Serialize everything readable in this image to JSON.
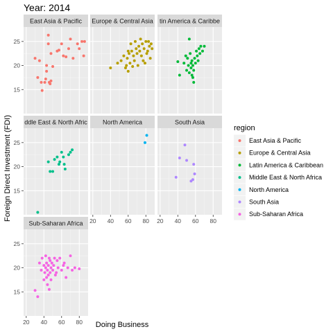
{
  "chart_data": {
    "type": "scatter",
    "title": "Year: 2014",
    "xlabel": "Doing Business",
    "ylabel": "Foreign Direct Investment (FDI)",
    "xlim": [
      17,
      90
    ],
    "ylim": [
      10,
      28
    ],
    "x_ticks": [
      20,
      40,
      60,
      80
    ],
    "y_ticks": [
      15,
      20,
      25
    ],
    "grid": true,
    "legend_title": "region",
    "legend_position": "right",
    "panels": [
      {
        "name": "East Asia & Pacific",
        "strip_label": "East Asia & Pacific",
        "color": "#F8766D",
        "points": [
          {
            "x": 30,
            "y": 21.5
          },
          {
            "x": 33,
            "y": 17.5
          },
          {
            "x": 35,
            "y": 21.0
          },
          {
            "x": 37,
            "y": 16.5
          },
          {
            "x": 38,
            "y": 14.8
          },
          {
            "x": 41,
            "y": 16.5
          },
          {
            "x": 42,
            "y": 17.2
          },
          {
            "x": 43,
            "y": 20.0
          },
          {
            "x": 43,
            "y": 18.8
          },
          {
            "x": 45,
            "y": 24.5
          },
          {
            "x": 45,
            "y": 26.3
          },
          {
            "x": 46,
            "y": 16.5
          },
          {
            "x": 47,
            "y": 16.2
          },
          {
            "x": 48,
            "y": 16.8
          },
          {
            "x": 48,
            "y": 22.5
          },
          {
            "x": 50,
            "y": 19.8
          },
          {
            "x": 55,
            "y": 23.0
          },
          {
            "x": 57,
            "y": 23.2
          },
          {
            "x": 60,
            "y": 24.5
          },
          {
            "x": 62,
            "y": 22.0
          },
          {
            "x": 65,
            "y": 21.8
          },
          {
            "x": 68,
            "y": 23.5
          },
          {
            "x": 70,
            "y": 25.5
          },
          {
            "x": 73,
            "y": 21.5
          },
          {
            "x": 78,
            "y": 24.5
          },
          {
            "x": 80,
            "y": 23.5
          },
          {
            "x": 83,
            "y": 25.0
          },
          {
            "x": 85,
            "y": 22.0
          },
          {
            "x": 86,
            "y": 25.0
          }
        ]
      },
      {
        "name": "Europe & Central Asia",
        "strip_label": "Europe & Central Asia",
        "color": "#B79F00",
        "points": [
          {
            "x": 40,
            "y": 19.5
          },
          {
            "x": 48,
            "y": 20.5
          },
          {
            "x": 52,
            "y": 21.0
          },
          {
            "x": 55,
            "y": 22.0
          },
          {
            "x": 57,
            "y": 19.5
          },
          {
            "x": 58,
            "y": 20.0
          },
          {
            "x": 59,
            "y": 21.5
          },
          {
            "x": 60,
            "y": 23.0
          },
          {
            "x": 60,
            "y": 18.8
          },
          {
            "x": 61,
            "y": 22.5
          },
          {
            "x": 62,
            "y": 20.5
          },
          {
            "x": 63,
            "y": 24.5
          },
          {
            "x": 64,
            "y": 23.0
          },
          {
            "x": 65,
            "y": 19.8
          },
          {
            "x": 66,
            "y": 22.0
          },
          {
            "x": 67,
            "y": 21.0
          },
          {
            "x": 68,
            "y": 25.0
          },
          {
            "x": 69,
            "y": 23.5
          },
          {
            "x": 70,
            "y": 22.5
          },
          {
            "x": 71,
            "y": 20.0
          },
          {
            "x": 72,
            "y": 24.0
          },
          {
            "x": 73,
            "y": 23.0
          },
          {
            "x": 74,
            "y": 25.5
          },
          {
            "x": 75,
            "y": 22.0
          },
          {
            "x": 76,
            "y": 24.5
          },
          {
            "x": 77,
            "y": 21.0
          },
          {
            "x": 78,
            "y": 23.5
          },
          {
            "x": 79,
            "y": 20.5
          },
          {
            "x": 80,
            "y": 25.0
          },
          {
            "x": 81,
            "y": 22.5
          },
          {
            "x": 82,
            "y": 23.0
          },
          {
            "x": 83,
            "y": 25.0
          },
          {
            "x": 84,
            "y": 24.0
          },
          {
            "x": 85,
            "y": 21.5
          },
          {
            "x": 86,
            "y": 24.5
          },
          {
            "x": 87,
            "y": 23.5
          }
        ]
      },
      {
        "name": "Latin America & Caribbean",
        "strip_label": "tin America & Caribbe",
        "color": "#00BA38",
        "points": [
          {
            "x": 40,
            "y": 20.8
          },
          {
            "x": 42,
            "y": 18.0
          },
          {
            "x": 47,
            "y": 20.5
          },
          {
            "x": 49,
            "y": 22.0
          },
          {
            "x": 50,
            "y": 19.0
          },
          {
            "x": 51,
            "y": 21.5
          },
          {
            "x": 52,
            "y": 20.0
          },
          {
            "x": 53,
            "y": 25.5
          },
          {
            "x": 53,
            "y": 18.5
          },
          {
            "x": 54,
            "y": 22.5
          },
          {
            "x": 55,
            "y": 20.5
          },
          {
            "x": 55,
            "y": 19.5
          },
          {
            "x": 56,
            "y": 21.0
          },
          {
            "x": 56,
            "y": 18.0
          },
          {
            "x": 57,
            "y": 20.0
          },
          {
            "x": 57,
            "y": 17.5
          },
          {
            "x": 58,
            "y": 19.0
          },
          {
            "x": 58,
            "y": 16.5
          },
          {
            "x": 59,
            "y": 21.5
          },
          {
            "x": 60,
            "y": 20.5
          },
          {
            "x": 61,
            "y": 23.0
          },
          {
            "x": 62,
            "y": 22.0
          },
          {
            "x": 63,
            "y": 21.0
          },
          {
            "x": 64,
            "y": 23.5
          },
          {
            "x": 65,
            "y": 22.5
          },
          {
            "x": 66,
            "y": 24.0
          },
          {
            "x": 68,
            "y": 23.0
          },
          {
            "x": 70,
            "y": 24.0
          }
        ]
      },
      {
        "name": "Middle East & North Africa",
        "strip_label": "ddle East & North Afric",
        "color": "#00BFC4",
        "mark_color": "#00C08B",
        "points": [
          {
            "x": 33,
            "y": 10.5
          },
          {
            "x": 45,
            "y": 21.0
          },
          {
            "x": 47,
            "y": 19.0
          },
          {
            "x": 50,
            "y": 19.0
          },
          {
            "x": 52,
            "y": 21.5
          },
          {
            "x": 55,
            "y": 22.0
          },
          {
            "x": 57,
            "y": 20.5
          },
          {
            "x": 58,
            "y": 21.0
          },
          {
            "x": 60,
            "y": 23.0
          },
          {
            "x": 62,
            "y": 22.0
          },
          {
            "x": 63,
            "y": 20.5
          },
          {
            "x": 64,
            "y": 19.5
          },
          {
            "x": 68,
            "y": 22.5
          },
          {
            "x": 70,
            "y": 23.0
          },
          {
            "x": 72,
            "y": 23.5
          }
        ]
      },
      {
        "name": "North America",
        "strip_label": "North America",
        "color": "#00B4F0",
        "points": [
          {
            "x": 79,
            "y": 25.0
          },
          {
            "x": 81,
            "y": 26.5
          }
        ]
      },
      {
        "name": "South Asia",
        "strip_label": "South Asia",
        "color": "#AE87FF",
        "points": [
          {
            "x": 38,
            "y": 17.8
          },
          {
            "x": 42,
            "y": 21.8
          },
          {
            "x": 48,
            "y": 24.5
          },
          {
            "x": 50,
            "y": 21.3
          },
          {
            "x": 55,
            "y": 17.0
          },
          {
            "x": 57,
            "y": 17.3
          },
          {
            "x": 58,
            "y": 20.5
          },
          {
            "x": 59,
            "y": 18.5
          }
        ]
      },
      {
        "name": "Sub-Saharan Africa",
        "strip_label": "Sub-Saharan Africa",
        "color": "#F564E3",
        "points": [
          {
            "x": 30,
            "y": 15.3
          },
          {
            "x": 33,
            "y": 14.0
          },
          {
            "x": 35,
            "y": 21.0
          },
          {
            "x": 37,
            "y": 19.5
          },
          {
            "x": 38,
            "y": 22.0
          },
          {
            "x": 40,
            "y": 17.5
          },
          {
            "x": 40,
            "y": 20.5
          },
          {
            "x": 41,
            "y": 19.0
          },
          {
            "x": 42,
            "y": 20.0
          },
          {
            "x": 42,
            "y": 22.5
          },
          {
            "x": 43,
            "y": 18.0
          },
          {
            "x": 43,
            "y": 21.0
          },
          {
            "x": 44,
            "y": 19.5
          },
          {
            "x": 44,
            "y": 16.5
          },
          {
            "x": 45,
            "y": 20.5
          },
          {
            "x": 45,
            "y": 18.5
          },
          {
            "x": 46,
            "y": 22.0
          },
          {
            "x": 46,
            "y": 15.5
          },
          {
            "x": 47,
            "y": 19.0
          },
          {
            "x": 47,
            "y": 21.5
          },
          {
            "x": 48,
            "y": 20.0
          },
          {
            "x": 48,
            "y": 17.5
          },
          {
            "x": 49,
            "y": 21.0
          },
          {
            "x": 50,
            "y": 19.5
          },
          {
            "x": 51,
            "y": 20.5
          },
          {
            "x": 52,
            "y": 22.0
          },
          {
            "x": 53,
            "y": 18.5
          },
          {
            "x": 54,
            "y": 19.0
          },
          {
            "x": 55,
            "y": 21.5
          },
          {
            "x": 56,
            "y": 20.0
          },
          {
            "x": 58,
            "y": 22.0
          },
          {
            "x": 60,
            "y": 19.5
          },
          {
            "x": 62,
            "y": 20.5
          },
          {
            "x": 63,
            "y": 21.0
          },
          {
            "x": 65,
            "y": 18.0
          },
          {
            "x": 67,
            "y": 20.0
          },
          {
            "x": 70,
            "y": 22.5
          },
          {
            "x": 72,
            "y": 19.5
          },
          {
            "x": 75,
            "y": 20.0
          },
          {
            "x": 80,
            "y": 19.8
          }
        ]
      }
    ]
  }
}
